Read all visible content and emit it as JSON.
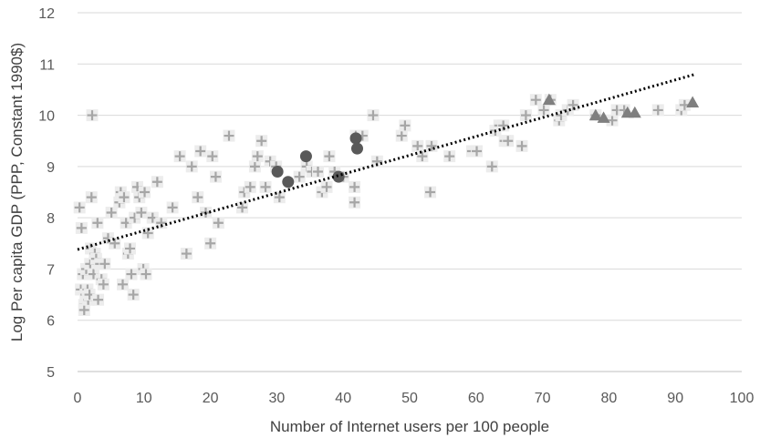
{
  "chart_data": {
    "type": "scatter",
    "title": "",
    "xlabel": "Number of Internet users per 100 people",
    "ylabel": "Log Per capita GDP (PPP, Constant 1990$)",
    "xlim": [
      0,
      100
    ],
    "ylim": [
      5,
      12
    ],
    "x_ticks": [
      0,
      10,
      20,
      30,
      40,
      50,
      60,
      70,
      80,
      90,
      100
    ],
    "y_ticks": [
      5,
      6,
      7,
      8,
      9,
      10,
      11,
      12
    ],
    "grid": "horizontal",
    "legend": "none",
    "colors": {
      "plus": "#a6a6a6",
      "plus_bg": "#ececec",
      "circle": "#595959",
      "triangle": "#7f7f7f",
      "trend": "#000000"
    },
    "series": [
      {
        "marker": "plus",
        "points": [
          [
            0.3,
            8.2
          ],
          [
            0.5,
            6.6
          ],
          [
            0.6,
            7.8
          ],
          [
            0.8,
            6.9
          ],
          [
            1.0,
            6.3
          ],
          [
            1.0,
            6.2
          ],
          [
            1.2,
            6.5
          ],
          [
            1.3,
            7.0
          ],
          [
            1.5,
            6.6
          ],
          [
            1.6,
            6.4
          ],
          [
            1.8,
            6.5
          ],
          [
            1.9,
            7.1
          ],
          [
            2.0,
            7.4
          ],
          [
            2.1,
            8.4
          ],
          [
            2.2,
            10.0
          ],
          [
            2.4,
            6.9
          ],
          [
            2.6,
            7.3
          ],
          [
            2.8,
            7.2
          ],
          [
            3.0,
            7.9
          ],
          [
            3.1,
            6.4
          ],
          [
            3.4,
            7.1
          ],
          [
            3.6,
            6.8
          ],
          [
            3.9,
            6.7
          ],
          [
            4.1,
            7.1
          ],
          [
            4.6,
            7.6
          ],
          [
            5.1,
            8.1
          ],
          [
            5.6,
            7.5
          ],
          [
            6.3,
            8.3
          ],
          [
            6.5,
            8.5
          ],
          [
            6.8,
            6.7
          ],
          [
            7.0,
            8.4
          ],
          [
            7.3,
            7.9
          ],
          [
            7.6,
            7.3
          ],
          [
            7.9,
            7.4
          ],
          [
            8.1,
            6.9
          ],
          [
            8.4,
            6.5
          ],
          [
            8.6,
            8.0
          ],
          [
            9.0,
            8.6
          ],
          [
            9.3,
            8.4
          ],
          [
            9.6,
            8.1
          ],
          [
            9.9,
            7.0
          ],
          [
            10.1,
            8.5
          ],
          [
            10.3,
            6.9
          ],
          [
            10.6,
            7.7
          ],
          [
            11.3,
            8.0
          ],
          [
            12.0,
            8.7
          ],
          [
            12.6,
            7.9
          ],
          [
            14.3,
            8.2
          ],
          [
            15.4,
            9.2
          ],
          [
            16.4,
            7.3
          ],
          [
            17.2,
            9.0
          ],
          [
            18.1,
            8.4
          ],
          [
            18.5,
            9.3
          ],
          [
            19.3,
            8.1
          ],
          [
            20.0,
            7.5
          ],
          [
            20.3,
            9.2
          ],
          [
            20.8,
            8.8
          ],
          [
            21.2,
            7.9
          ],
          [
            22.8,
            9.6
          ],
          [
            24.8,
            8.2
          ],
          [
            25.1,
            8.5
          ],
          [
            26.0,
            8.6
          ],
          [
            26.7,
            9.0
          ],
          [
            27.1,
            9.2
          ],
          [
            27.7,
            9.5
          ],
          [
            28.3,
            8.6
          ],
          [
            29.0,
            9.1
          ],
          [
            29.9,
            9.0
          ],
          [
            30.4,
            8.4
          ],
          [
            33.4,
            8.8
          ],
          [
            34.5,
            9.0
          ],
          [
            35.3,
            8.9
          ],
          [
            36.2,
            8.9
          ],
          [
            36.8,
            8.5
          ],
          [
            37.5,
            8.6
          ],
          [
            37.9,
            9.2
          ],
          [
            38.7,
            8.9
          ],
          [
            40.0,
            8.8
          ],
          [
            41.7,
            8.3
          ],
          [
            41.7,
            8.6
          ],
          [
            41.9,
            9.6
          ],
          [
            42.9,
            9.6
          ],
          [
            44.5,
            10.0
          ],
          [
            45.1,
            9.1
          ],
          [
            48.8,
            9.6
          ],
          [
            49.3,
            9.8
          ],
          [
            51.2,
            9.4
          ],
          [
            51.9,
            9.2
          ],
          [
            53.1,
            8.5
          ],
          [
            53.3,
            9.4
          ],
          [
            56.0,
            9.2
          ],
          [
            59.4,
            9.3
          ],
          [
            60.1,
            9.3
          ],
          [
            62.4,
            9.0
          ],
          [
            62.9,
            9.7
          ],
          [
            63.5,
            9.8
          ],
          [
            64.1,
            9.8
          ],
          [
            64.3,
            9.5
          ],
          [
            64.8,
            9.5
          ],
          [
            66.9,
            9.4
          ],
          [
            67.5,
            10.0
          ],
          [
            69.0,
            10.3
          ],
          [
            70.2,
            10.1
          ],
          [
            71.2,
            10.3
          ],
          [
            72.5,
            9.9
          ],
          [
            72.8,
            10.0
          ],
          [
            73.8,
            10.1
          ],
          [
            74.6,
            10.2
          ],
          [
            78.0,
            10.0
          ],
          [
            80.5,
            9.9
          ],
          [
            81.2,
            10.1
          ],
          [
            82.3,
            10.1
          ],
          [
            87.4,
            10.1
          ],
          [
            90.9,
            10.1
          ],
          [
            91.4,
            10.2
          ]
        ]
      },
      {
        "marker": "circle",
        "points": [
          [
            30.1,
            8.9
          ],
          [
            31.7,
            8.7
          ],
          [
            34.4,
            9.2
          ],
          [
            39.3,
            8.8
          ],
          [
            41.9,
            9.55
          ],
          [
            42.1,
            9.35
          ]
        ]
      },
      {
        "marker": "triangle",
        "points": [
          [
            71.0,
            10.3
          ],
          [
            78.0,
            10.0
          ],
          [
            79.2,
            9.95
          ],
          [
            82.8,
            10.05
          ],
          [
            83.9,
            10.05
          ],
          [
            92.6,
            10.25
          ]
        ]
      }
    ],
    "trendline": {
      "style": "dotted",
      "x": [
        0,
        93
      ],
      "y": [
        7.38,
        10.8
      ]
    }
  }
}
